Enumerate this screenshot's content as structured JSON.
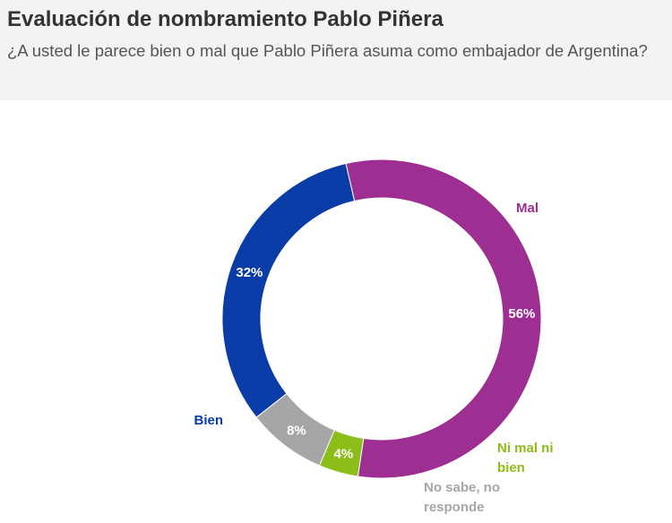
{
  "header": {
    "title": "Evaluación de nombramiento Pablo Piñera",
    "subtitle": "¿A usted le parece bien o mal que Pablo Piñera asuma como embajador de Argentina?"
  },
  "chart_data": {
    "type": "pie",
    "donut": true,
    "title": "Evaluación de nombramiento Pablo Piñera",
    "subtitle": "¿A usted le parece bien o mal que Pablo Piñera asuma como embajador de Argentina?",
    "series": [
      {
        "name": "Mal",
        "value": 56,
        "value_label": "56%",
        "color": "#9c2f91",
        "label_lines": [
          "Mal"
        ]
      },
      {
        "name": "Ni mal ni bien",
        "value": 4,
        "value_label": "4%",
        "color": "#8cbd18",
        "label_lines": [
          "Ni mal ni",
          "bien"
        ]
      },
      {
        "name": "No sabe, no responde",
        "value": 8,
        "value_label": "8%",
        "color": "#a6a6a6",
        "label_lines": [
          "No sabe, no",
          "responde"
        ]
      },
      {
        "name": "Bien",
        "value": 32,
        "value_label": "32%",
        "color": "#0a3ca8",
        "label_lines": [
          "Bien"
        ]
      }
    ]
  }
}
